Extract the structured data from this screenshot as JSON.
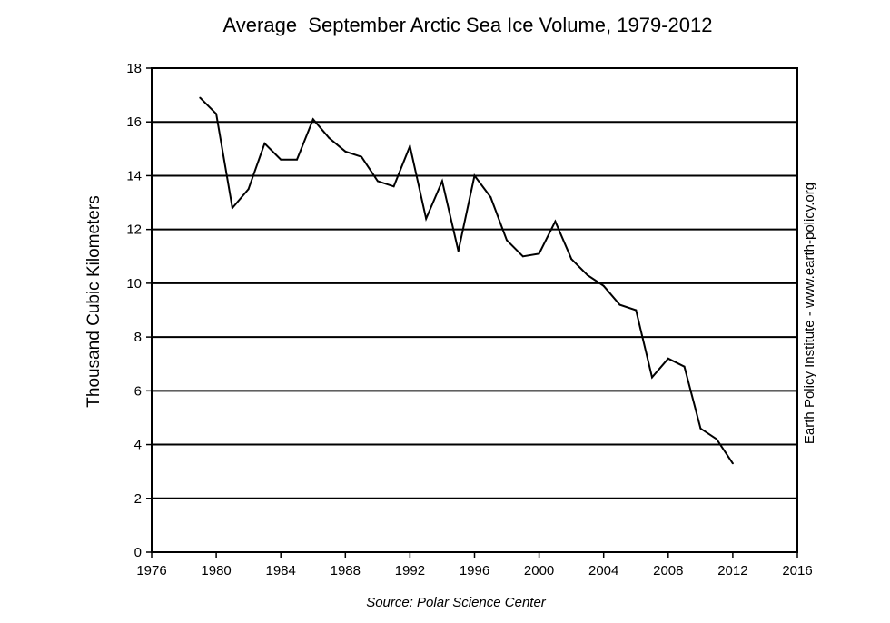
{
  "chart_data": {
    "type": "line",
    "title": "Average  September Arctic Sea Ice Volume, 1979-2012",
    "xlabel": "",
    "ylabel": "Thousand Cubic Kilometers",
    "xlim": [
      1976,
      2016
    ],
    "ylim": [
      0,
      18
    ],
    "xticks": [
      1976,
      1980,
      1984,
      1988,
      1992,
      1996,
      2000,
      2004,
      2008,
      2012,
      2016
    ],
    "yticks": [
      0,
      2,
      4,
      6,
      8,
      10,
      12,
      14,
      16,
      18
    ],
    "grid": "horizontal",
    "line_color": "#000000",
    "series": [
      {
        "x": [
          1979,
          1980,
          1981,
          1982,
          1983,
          1984,
          1985,
          1986,
          1987,
          1988,
          1989,
          1990,
          1991,
          1992,
          1993,
          1994,
          1995,
          1996,
          1997,
          1998,
          1999,
          2000,
          2001,
          2002,
          2003,
          2004,
          2005,
          2006,
          2007,
          2008,
          2009,
          2010,
          2011,
          2012
        ],
        "y": [
          16.9,
          16.3,
          12.8,
          13.5,
          15.2,
          14.6,
          14.6,
          16.1,
          15.4,
          14.9,
          14.7,
          13.8,
          13.6,
          15.1,
          12.4,
          13.8,
          11.2,
          14.0,
          13.2,
          11.6,
          11.0,
          11.1,
          12.3,
          10.9,
          10.3,
          9.9,
          9.2,
          9.0,
          6.5,
          7.2,
          6.9,
          4.6,
          4.2,
          3.3
        ]
      }
    ],
    "source_note": "Source: Polar Science Center",
    "credit": "Earth Policy Institute - www.earth-policy.org"
  }
}
